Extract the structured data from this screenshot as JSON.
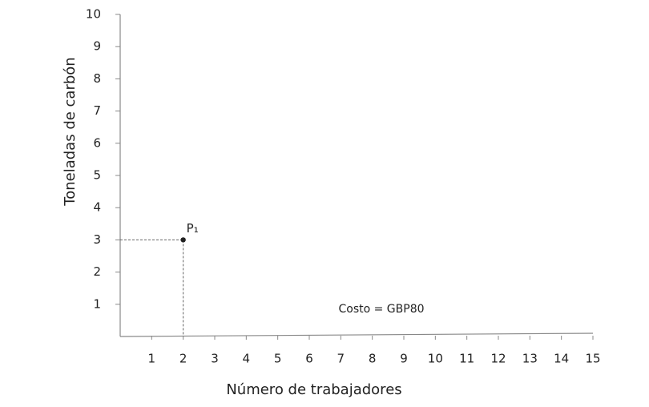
{
  "chart_data": {
    "type": "scatter",
    "x_label": "Número de trabajadores",
    "y_label": "Toneladas de carbón",
    "xlim": [
      0,
      15
    ],
    "ylim": [
      0,
      10
    ],
    "xticks": [
      1,
      2,
      3,
      4,
      5,
      6,
      7,
      8,
      9,
      10,
      11,
      12,
      13,
      14,
      15
    ],
    "yticks": [
      1,
      2,
      3,
      4,
      5,
      6,
      7,
      8,
      9,
      10
    ],
    "x": [
      2
    ],
    "values": [
      3
    ],
    "point_labels": [
      "P₁"
    ],
    "color": "#222222",
    "guides": true,
    "annotation": "Costo = GBP80"
  }
}
